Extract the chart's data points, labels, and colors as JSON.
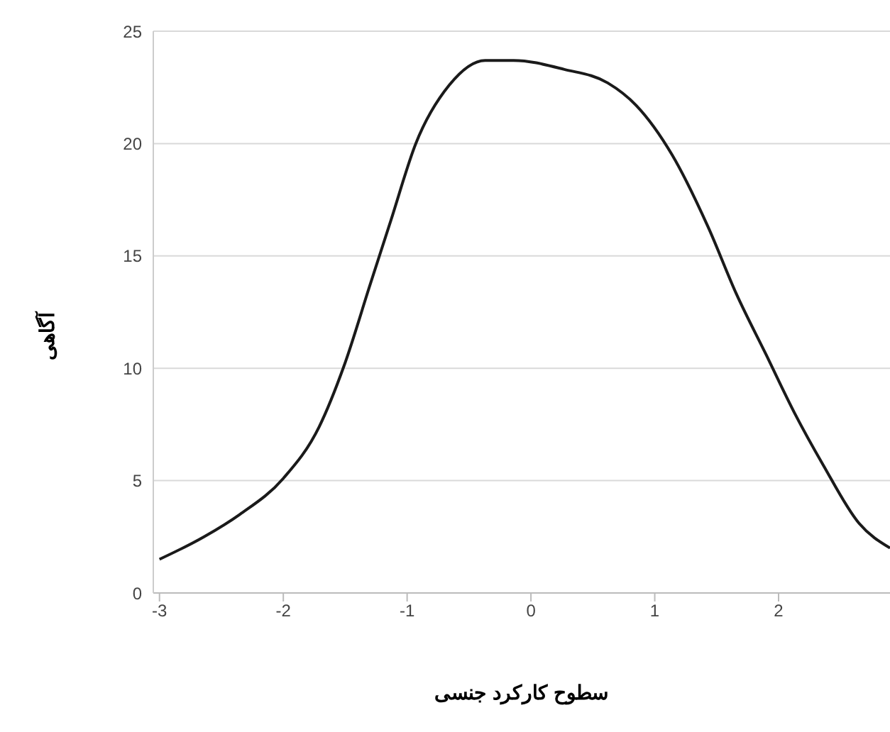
{
  "chart_data": {
    "type": "line",
    "xlabel": "سطوح کارکرد جنسی",
    "ylabel": "آگاهی",
    "x": [
      -3,
      -2.64,
      -2.35,
      -2,
      -1.71,
      -1.51,
      -1.3,
      -1.13,
      -0.93,
      -0.66,
      -0.37,
      -0.14,
      0.27,
      0.62,
      0.85,
      1.14,
      1.43,
      1.66,
      1.9,
      2.13,
      2.36,
      2.65,
      2.9
    ],
    "series": [
      {
        "color": "#1a1a1a",
        "values": [
          1.5,
          2.5,
          3.5,
          5.1,
          7.4,
          10.1,
          13.7,
          16.6,
          20,
          22.6,
          23.7,
          23.7,
          23.3,
          22.7,
          21.7,
          19.5,
          16.3,
          13.3,
          10.6,
          8,
          5.7,
          3.1,
          2
        ]
      }
    ],
    "xlim": [
      -3.05,
      2.9
    ],
    "xticks": [
      -3,
      -2,
      -1,
      0,
      1,
      2
    ],
    "ylim": [
      0,
      25
    ],
    "yticks": [
      0,
      5,
      10,
      15,
      20,
      25
    ],
    "grid": "y",
    "legend": false,
    "marker": "none",
    "line_style": "solid"
  }
}
